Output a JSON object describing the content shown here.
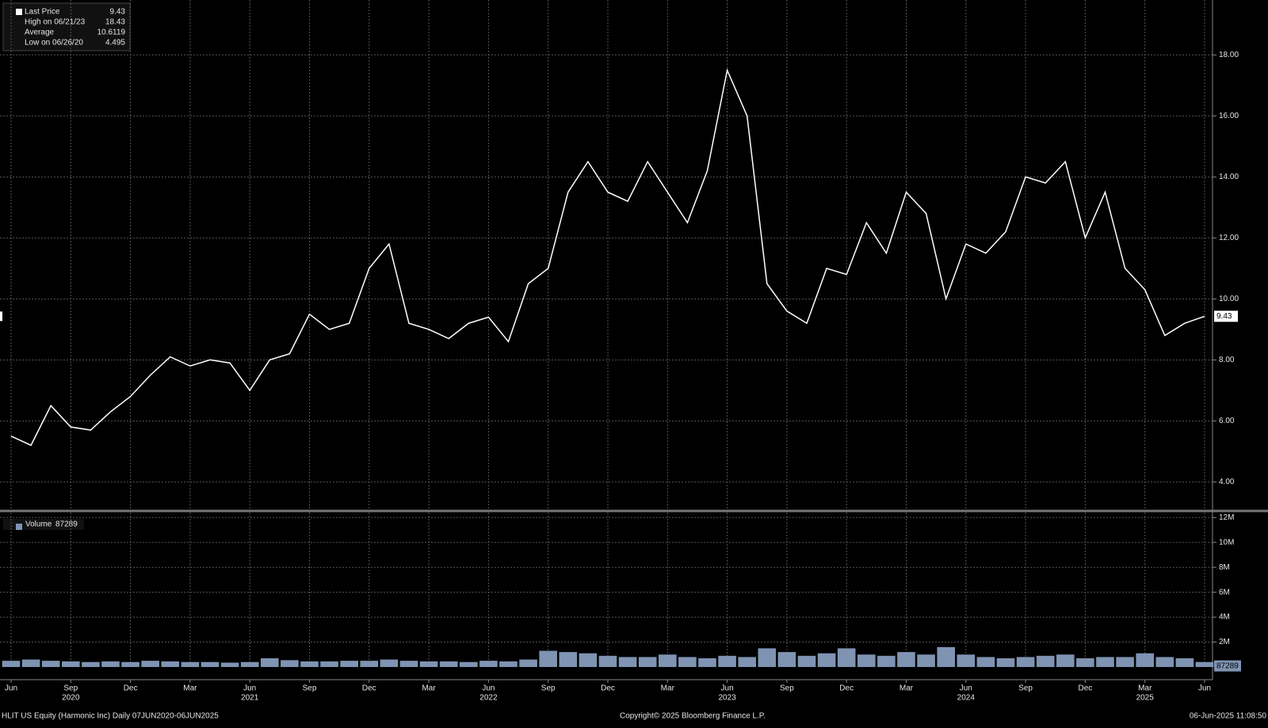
{
  "chart_data": [
    {
      "type": "line",
      "legend": [
        {
          "name": "Last Price",
          "value": 9.43
        },
        {
          "name": "High on 06/21/23",
          "value": 18.43
        },
        {
          "name": "Average",
          "value": 10.6119
        },
        {
          "name": "Low on 06/26/20",
          "value": 4.495
        }
      ],
      "x": [
        "2020-06",
        "2020-07",
        "2020-08",
        "2020-09",
        "2020-10",
        "2020-11",
        "2020-12",
        "2021-01",
        "2021-02",
        "2021-03",
        "2021-04",
        "2021-05",
        "2021-06",
        "2021-07",
        "2021-08",
        "2021-09",
        "2021-10",
        "2021-11",
        "2021-12",
        "2022-01",
        "2022-02",
        "2022-03",
        "2022-04",
        "2022-05",
        "2022-06",
        "2022-07",
        "2022-08",
        "2022-09",
        "2022-10",
        "2022-11",
        "2022-12",
        "2023-01",
        "2023-02",
        "2023-03",
        "2023-04",
        "2023-05",
        "2023-06",
        "2023-07",
        "2023-08",
        "2023-09",
        "2023-10",
        "2023-11",
        "2023-12",
        "2024-01",
        "2024-02",
        "2024-03",
        "2024-04",
        "2024-05",
        "2024-06",
        "2024-07",
        "2024-08",
        "2024-09",
        "2024-10",
        "2024-11",
        "2024-12",
        "2025-01",
        "2025-02",
        "2025-03",
        "2025-04",
        "2025-05",
        "2025-06"
      ],
      "series": [
        {
          "name": "Last Price",
          "color": "#ffffff",
          "values": [
            5.5,
            5.2,
            6.5,
            5.8,
            5.7,
            6.3,
            6.8,
            7.5,
            8.1,
            7.8,
            8.0,
            7.9,
            7.0,
            8.0,
            8.2,
            9.5,
            9.0,
            9.2,
            11.0,
            11.8,
            9.2,
            9.0,
            8.7,
            9.2,
            9.4,
            8.6,
            10.5,
            11.0,
            13.5,
            14.5,
            13.5,
            13.2,
            14.5,
            13.5,
            12.5,
            14.2,
            17.5,
            16.0,
            10.5,
            9.6,
            9.2,
            11.0,
            10.8,
            12.5,
            11.5,
            13.5,
            12.8,
            10.0,
            11.8,
            11.5,
            12.2,
            14.0,
            13.8,
            14.5,
            12.0,
            13.5,
            11.0,
            10.3,
            8.8,
            9.2,
            9.43
          ]
        }
      ],
      "ylim": [
        3.1,
        19.8
      ],
      "yticks": [
        {
          "value": 4,
          "label": "4.00"
        },
        {
          "value": 6,
          "label": "6.00"
        },
        {
          "value": 8,
          "label": "8.00"
        },
        {
          "value": 10,
          "label": "10.00"
        },
        {
          "value": 12,
          "label": "12.00"
        },
        {
          "value": 14,
          "label": "14.00"
        },
        {
          "value": 16,
          "label": "16.00"
        },
        {
          "value": 18,
          "label": "18.00"
        }
      ],
      "xticks": [
        {
          "value": "2020-06",
          "label": "Jun"
        },
        {
          "value": "2020-09",
          "label": "Sep"
        },
        {
          "value": "2020-12",
          "label": "Dec"
        },
        {
          "value": "2021-03",
          "label": "Mar"
        },
        {
          "value": "2021-06",
          "label": "Jun"
        },
        {
          "value": "2021-09",
          "label": "Sep"
        },
        {
          "value": "2021-12",
          "label": "Dec"
        },
        {
          "value": "2022-03",
          "label": "Mar"
        },
        {
          "value": "2022-06",
          "label": "Jun"
        },
        {
          "value": "2022-09",
          "label": "Sep"
        },
        {
          "value": "2022-12",
          "label": "Dec"
        },
        {
          "value": "2023-03",
          "label": "Mar"
        },
        {
          "value": "2023-06",
          "label": "Jun"
        },
        {
          "value": "2023-09",
          "label": "Sep"
        },
        {
          "value": "2023-12",
          "label": "Dec"
        },
        {
          "value": "2024-03",
          "label": "Mar"
        },
        {
          "value": "2024-06",
          "label": "Jun"
        },
        {
          "value": "2024-09",
          "label": "Sep"
        },
        {
          "value": "2024-12",
          "label": "Dec"
        },
        {
          "value": "2025-03",
          "label": "Mar"
        },
        {
          "value": "2025-06",
          "label": "Jun"
        }
      ],
      "year_labels": [
        {
          "value": "2020-09",
          "label": "2020"
        },
        {
          "value": "2021-06",
          "label": "2021"
        },
        {
          "value": "2022-06",
          "label": "2022"
        },
        {
          "value": "2023-06",
          "label": "2023"
        },
        {
          "value": "2024-06",
          "label": "2024"
        },
        {
          "value": "2025-03",
          "label": "2025"
        }
      ],
      "grid": true
    },
    {
      "type": "bar",
      "series": [
        {
          "name": "Volume",
          "color": "#7f93b3",
          "values": [
            500000,
            600000,
            500000,
            450000,
            400000,
            450000,
            400000,
            500000,
            450000,
            400000,
            400000,
            350000,
            400000,
            700000,
            550000,
            450000,
            450000,
            500000,
            500000,
            600000,
            500000,
            450000,
            450000,
            400000,
            500000,
            450000,
            600000,
            1300000,
            1200000,
            1100000,
            900000,
            800000,
            800000,
            1000000,
            800000,
            700000,
            900000,
            800000,
            1500000,
            1200000,
            900000,
            1100000,
            1500000,
            1000000,
            900000,
            1200000,
            1000000,
            1600000,
            1000000,
            800000,
            700000,
            800000,
            900000,
            1000000,
            700000,
            800000,
            800000,
            1100000,
            800000,
            700000,
            400000
          ]
        }
      ],
      "last_volume": 87289,
      "ylim": [
        0,
        12400000
      ],
      "yticks": [
        {
          "value": 2000000,
          "label": "2M"
        },
        {
          "value": 4000000,
          "label": "4M"
        },
        {
          "value": 6000000,
          "label": "6M"
        },
        {
          "value": 8000000,
          "label": "8M"
        },
        {
          "value": 10000000,
          "label": "10M"
        },
        {
          "value": 12000000,
          "label": "12M"
        }
      ],
      "grid": true
    }
  ],
  "footer": {
    "security": "HLIT US Equity (Harmonic Inc)  Daily 07JUN2020-06JUN2025",
    "copyright": "Copyright© 2025 Bloomberg Finance L.P.",
    "timestamp": "06-Jun-2025 11:08:50"
  }
}
